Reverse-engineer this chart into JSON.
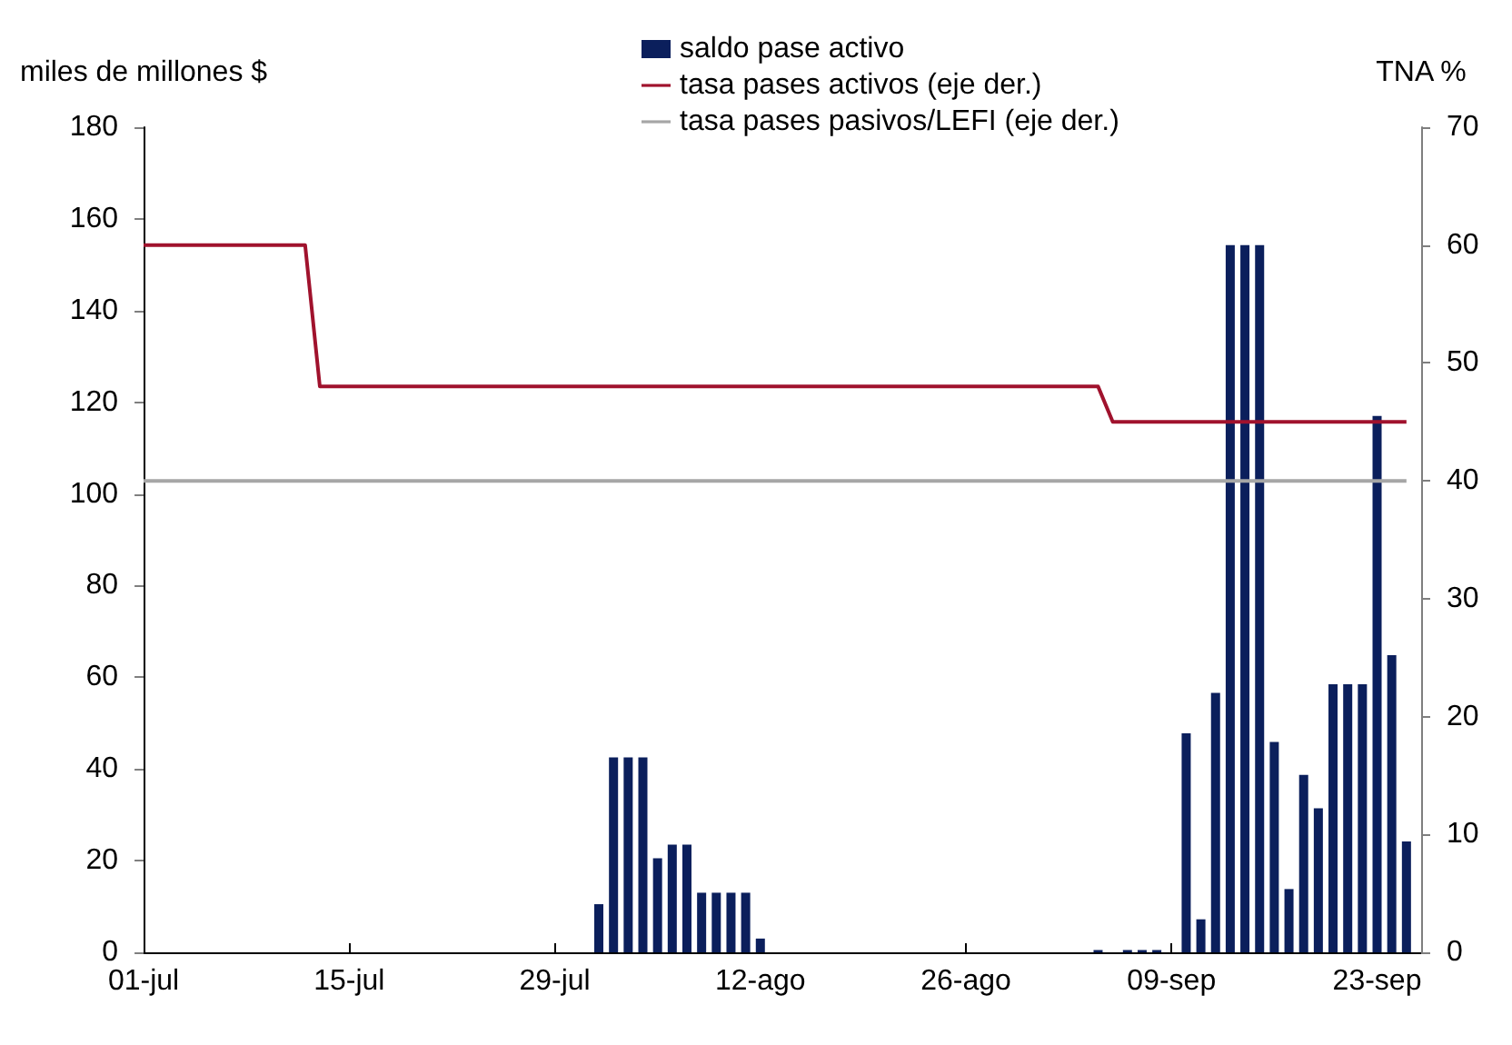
{
  "chart_data": {
    "type": "bar",
    "ylabel": "miles de millones $",
    "y2label": "TNA %",
    "xlim": [
      "--07-01",
      "--09-26"
    ],
    "xticks": [
      {
        "value": "--07-01",
        "label": "01-jul"
      },
      {
        "value": "--07-15",
        "label": "15-jul"
      },
      {
        "value": "--07-29",
        "label": "29-jul"
      },
      {
        "value": "--08-12",
        "label": "12-ago"
      },
      {
        "value": "--08-26",
        "label": "26-ago"
      },
      {
        "value": "--09-09",
        "label": "09-sep"
      },
      {
        "value": "--09-23",
        "label": "23-sep"
      }
    ],
    "ylim": [
      0,
      180
    ],
    "yticks": [
      0,
      20,
      40,
      60,
      80,
      100,
      120,
      140,
      160,
      180
    ],
    "y2lim": [
      0,
      70
    ],
    "y2ticks": [
      0,
      10,
      20,
      30,
      40,
      50,
      60,
      70
    ],
    "grid": false,
    "legend": "top",
    "series": [
      {
        "name": "saldo pase activo",
        "color": "#0b1f5c",
        "x": [
          "--08-01",
          "--08-02",
          "--08-03",
          "--08-04",
          "--08-05",
          "--08-06",
          "--08-07",
          "--08-08",
          "--08-09",
          "--08-10",
          "--08-11",
          "--08-12",
          "--09-04",
          "--09-06",
          "--09-07",
          "--09-08",
          "--09-10",
          "--09-11",
          "--09-12",
          "--09-13",
          "--09-14",
          "--09-15",
          "--09-16",
          "--09-17",
          "--09-18",
          "--09-19",
          "--09-20",
          "--09-21",
          "--09-22",
          "--09-23",
          "--09-24",
          "--09-25"
        ],
        "values": [
          10.5,
          42.5,
          42.5,
          42.5,
          20.5,
          23.5,
          23.5,
          13,
          13,
          13,
          13,
          3,
          0.5,
          0.5,
          0.5,
          0.5,
          47.8,
          7.2,
          56.6,
          154.3,
          154.3,
          154.3,
          45.9,
          13.8,
          38.7,
          31.4,
          58.5,
          58.5,
          58.5,
          117,
          64.8,
          24.2
        ]
      },
      {
        "name": "tasa pases activos (eje der.)",
        "type": "line",
        "axis": "y2",
        "color": "#a0122d",
        "x": [
          "--07-01",
          "--07-12",
          "--07-13",
          "--09-04",
          "--09-05",
          "--09-25"
        ],
        "values": [
          60,
          60,
          48,
          48,
          45,
          45
        ]
      },
      {
        "name": "tasa pases pasivos/LEFI (eje der.)",
        "type": "line",
        "axis": "y2",
        "color": "#a6a6a6",
        "x": [
          "--07-01",
          "--09-25"
        ],
        "values": [
          40,
          40
        ]
      }
    ]
  }
}
